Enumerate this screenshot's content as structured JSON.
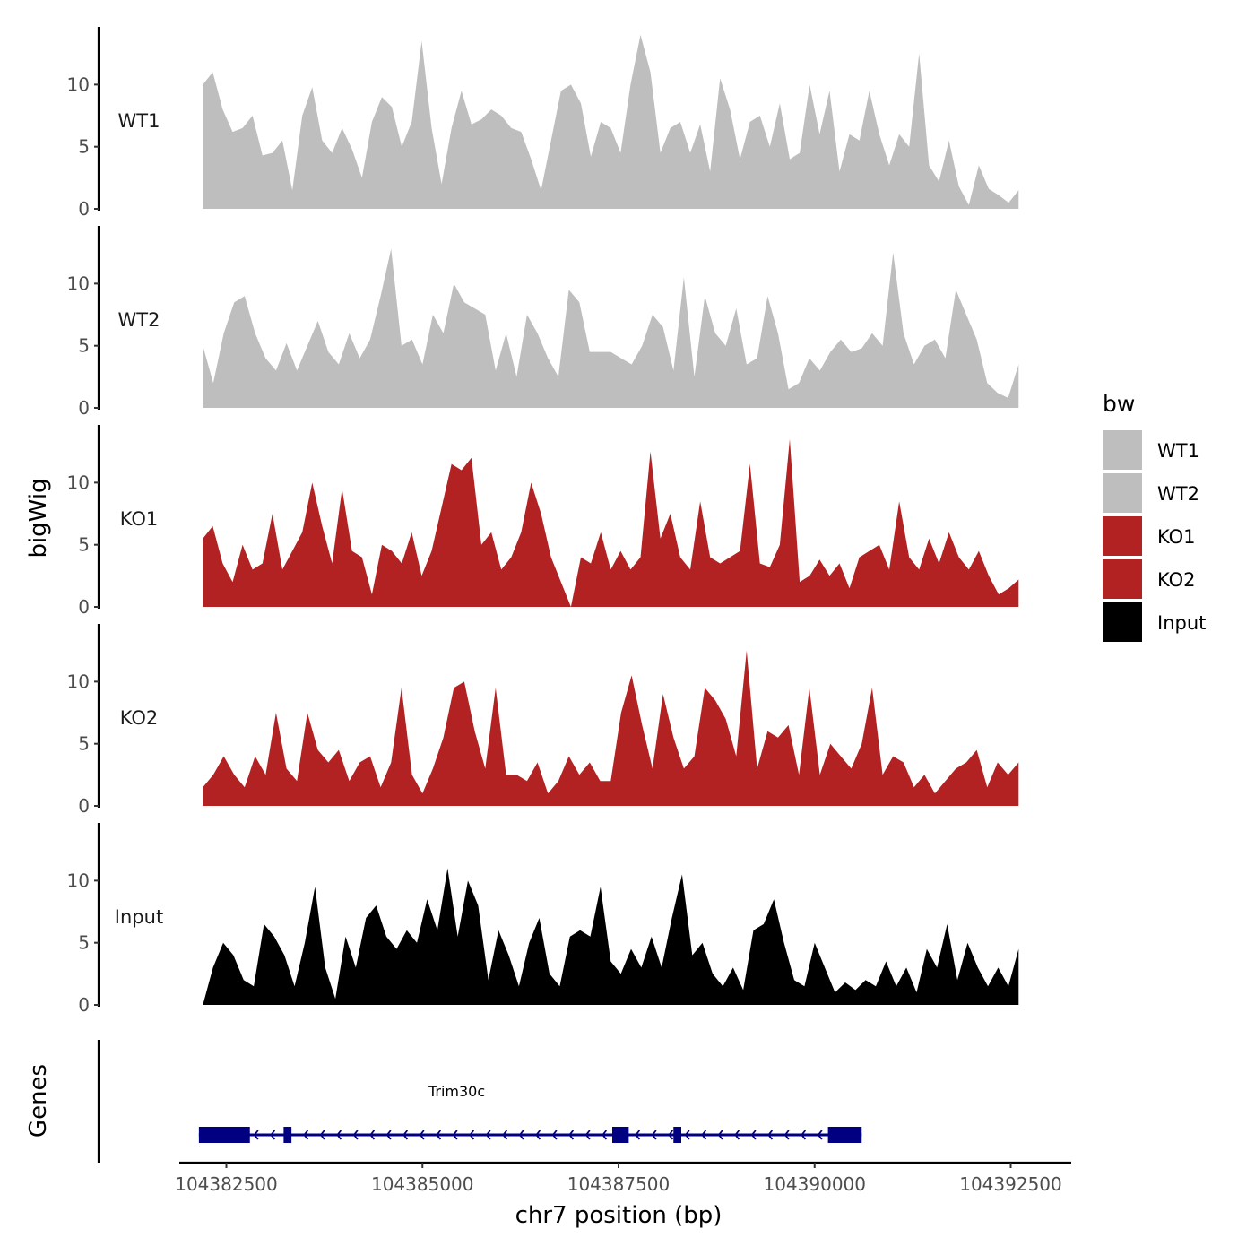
{
  "chart_data": {
    "type": "area",
    "ylabel": "bigWig",
    "xlabel": "chr7 position (bp)",
    "genes_label": "Genes",
    "xlim": [
      104381900,
      104393100
    ],
    "x_ticks": [
      104382500,
      104385000,
      104387500,
      104390000,
      104392500
    ],
    "x_tick_labels": [
      "104382500",
      "104385000",
      "104387500",
      "104390000",
      "104392500"
    ],
    "ylim": [
      0,
      14.5
    ],
    "y_ticks": [
      0,
      5,
      10
    ],
    "y_tick_labels": [
      "0",
      "5",
      "10"
    ],
    "x_start": 104382200,
    "x_end": 104392600,
    "tracks": [
      {
        "name": "WT1",
        "group": "WT",
        "color": "#bebebe",
        "values": [
          10,
          11,
          8,
          6.2,
          6.5,
          7.5,
          4.3,
          4.5,
          5.5,
          1.5,
          7.5,
          9.8,
          5.5,
          4.5,
          6.5,
          4.8,
          2.5,
          7,
          9,
          8.2,
          5,
          7,
          13.5,
          6.5,
          2,
          6.5,
          9.5,
          6.8,
          7.2,
          8,
          7.5,
          6.5,
          6.2,
          4,
          1.5,
          5.5,
          9.5,
          10,
          8.5,
          4.2,
          7,
          6.5,
          4.5,
          10,
          14,
          11,
          4.5,
          6.5,
          7,
          4.5,
          6.8,
          3,
          10.5,
          8,
          4,
          7,
          7.5,
          5,
          8.5,
          4,
          4.5,
          10,
          6,
          9.5,
          3,
          6,
          5.5,
          9.5,
          6,
          3.5,
          6,
          5,
          12.5,
          3.5,
          2.2,
          5.5,
          1.8,
          0.3,
          3.5,
          1.6,
          1.1,
          0.5,
          1.5
        ]
      },
      {
        "name": "WT2",
        "group": "WT",
        "color": "#bebebe",
        "values": [
          5,
          2,
          6,
          8.5,
          9,
          6,
          4,
          3,
          5.2,
          3,
          5,
          7,
          4.5,
          3.5,
          6,
          4,
          5.5,
          9,
          12.8,
          5,
          5.5,
          3.5,
          7.5,
          6,
          10,
          8.5,
          8,
          7.5,
          3,
          6,
          2.5,
          7.5,
          6,
          4,
          2.5,
          9.5,
          8.5,
          4.5,
          4.5,
          4.5,
          4,
          3.5,
          5,
          7.5,
          6.5,
          3,
          10.5,
          2.5,
          9,
          6,
          5,
          8,
          3.5,
          4,
          9,
          6,
          1.5,
          2,
          4,
          3,
          4.5,
          5.5,
          4.5,
          4.8,
          6,
          5,
          12.5,
          6,
          3.5,
          5,
          5.5,
          4,
          9.5,
          7.5,
          5.5,
          2,
          1.2,
          0.8,
          3.5
        ]
      },
      {
        "name": "KO1",
        "group": "KO",
        "color": "#b22222",
        "values": [
          5.5,
          6.5,
          3.5,
          2,
          5,
          3,
          3.5,
          7.5,
          3,
          4.5,
          6,
          10,
          6.5,
          3.5,
          9.5,
          4.5,
          4,
          1,
          5,
          4.5,
          3.5,
          6,
          2.5,
          4.5,
          8,
          11.5,
          11,
          12,
          5,
          6,
          3,
          4,
          6,
          10,
          7.5,
          4,
          2,
          0,
          4,
          3.5,
          6,
          3,
          4.5,
          3,
          4,
          12.5,
          5.5,
          7.5,
          4,
          3,
          8.5,
          4,
          3.5,
          4,
          4.5,
          11.5,
          3.5,
          3.2,
          5,
          13.5,
          2,
          2.5,
          3.8,
          2.5,
          3.5,
          1.5,
          4,
          4.5,
          5,
          3,
          8.5,
          4,
          3,
          5.5,
          3.5,
          6,
          4,
          3,
          4.5,
          2.5,
          1,
          1.5,
          2.2
        ]
      },
      {
        "name": "KO2",
        "group": "KO",
        "color": "#b22222",
        "values": [
          1.5,
          2.5,
          4,
          2.5,
          1.5,
          4,
          2.5,
          7.5,
          3,
          2,
          7.5,
          4.5,
          3.5,
          4.5,
          2,
          3.5,
          4,
          1.5,
          3.5,
          9.5,
          2.5,
          1,
          3,
          5.5,
          9.5,
          10,
          6,
          3,
          9.5,
          2.5,
          2.5,
          2,
          3.5,
          1,
          2,
          4,
          2.5,
          3.5,
          2,
          2,
          7.5,
          10.5,
          6.5,
          3,
          9,
          5.5,
          3,
          4,
          9.5,
          8.5,
          7,
          4,
          12.5,
          3,
          6,
          5.5,
          6.5,
          2.5,
          9.5,
          2.5,
          5,
          4,
          3,
          5,
          9.5,
          2.5,
          4,
          3.5,
          1.5,
          2.5,
          1,
          2,
          3,
          3.5,
          4.5,
          1.5,
          3.5,
          2.5,
          3.5
        ]
      },
      {
        "name": "Input",
        "group": "Input",
        "color": "#000000",
        "values": [
          0,
          3,
          5,
          4,
          2,
          1.5,
          6.5,
          5.5,
          4,
          1.5,
          5,
          9.5,
          3,
          0.5,
          5.5,
          3,
          7,
          8,
          5.5,
          4.5,
          6,
          5,
          8.5,
          6,
          11,
          5.5,
          10,
          8,
          2,
          6,
          4,
          1.5,
          5,
          7,
          2.5,
          1.5,
          5.5,
          6,
          5.5,
          9.5,
          3.5,
          2.5,
          4.5,
          3,
          5.5,
          3,
          7,
          10.5,
          4,
          5,
          2.5,
          1.5,
          3,
          1.2,
          6,
          6.5,
          8.5,
          5,
          2,
          1.5,
          5,
          3,
          1,
          1.8,
          1.2,
          2,
          1.5,
          3.5,
          1.5,
          3,
          1,
          4.5,
          3,
          6.5,
          2,
          5,
          3,
          1.5,
          3,
          1.5,
          4.5
        ]
      }
    ],
    "legend": {
      "title": "bw",
      "entries": [
        {
          "label": "WT1",
          "color": "#bebebe"
        },
        {
          "label": "WT2",
          "color": "#bebebe"
        },
        {
          "label": "KO1",
          "color": "#b22222"
        },
        {
          "label": "KO2",
          "color": "#b22222"
        },
        {
          "label": "Input",
          "color": "#000000"
        }
      ]
    },
    "genes": [
      {
        "name": "Trim30c",
        "strand": "-",
        "start": 104382150,
        "end": 104390600,
        "color": "#000080",
        "exons": [
          [
            104382150,
            104382800
          ],
          [
            104383230,
            104383330
          ],
          [
            104387420,
            104387630
          ],
          [
            104388200,
            104388300
          ],
          [
            104390170,
            104390600
          ]
        ]
      }
    ]
  }
}
